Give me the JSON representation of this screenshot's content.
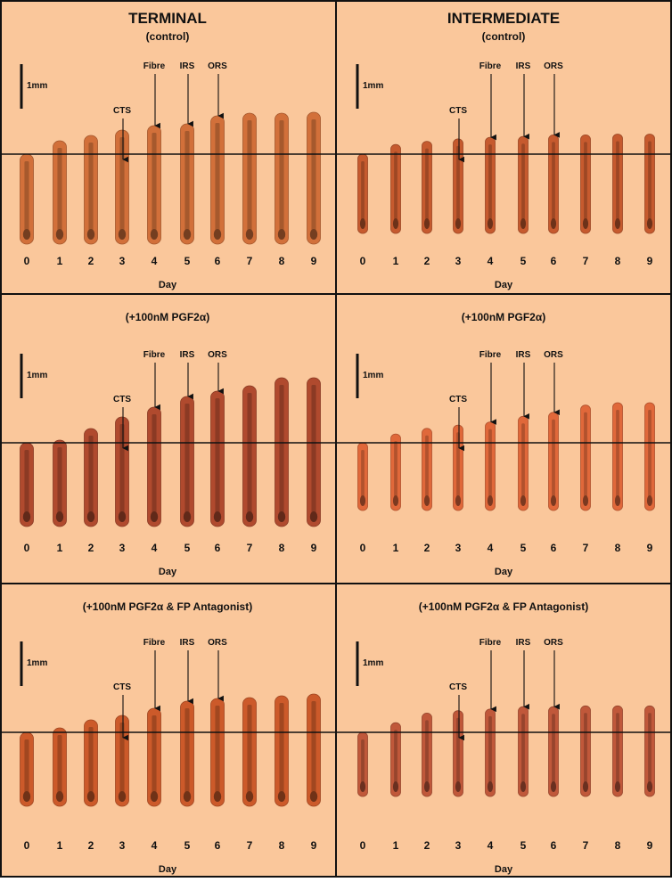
{
  "columns": [
    {
      "title": "TERMINAL"
    },
    {
      "title": "INTERMEDIATE"
    }
  ],
  "rows": [
    {
      "condition": "(control)"
    },
    {
      "condition": "(+100nM PGF2α)"
    },
    {
      "condition": "(+100nM PGF2α & FP Antagonist)"
    }
  ],
  "days": [
    "0",
    "1",
    "2",
    "3",
    "4",
    "5",
    "6",
    "7",
    "8",
    "9"
  ],
  "x_axis_label": "Day",
  "scale_bar_label": "1mm",
  "markers": [
    {
      "label": "CTS",
      "day": 3
    },
    {
      "label": "Fibre",
      "day": 4
    },
    {
      "label": "IRS",
      "day": 5
    },
    {
      "label": "ORS",
      "day": 6
    }
  ],
  "colors": {
    "background": "#FAC79B",
    "border": "#111111",
    "terminal_control_hair": "#D2703A",
    "intermediate_control_hair": "#C65A2E",
    "terminal_pgf_hair": "#B04A2E",
    "intermediate_pgf_hair": "#E0683A",
    "terminal_antagonist_hair": "#CC5A2A",
    "intermediate_antagonist_hair": "#C0583A"
  },
  "panels": [
    {
      "column": "TERMINAL",
      "row": "(control)",
      "color": "#D2703A",
      "growth": [
        0,
        0.15,
        0.21,
        0.27,
        0.32,
        0.34,
        0.43,
        0.46,
        0.46,
        0.47
      ]
    },
    {
      "column": "INTERMEDIATE",
      "row": "(control)",
      "color": "#C65A2E",
      "growth": [
        0,
        0.12,
        0.16,
        0.19,
        0.21,
        0.22,
        0.24,
        0.24,
        0.25,
        0.25
      ]
    },
    {
      "column": "TERMINAL",
      "row": "(+100nM PGF2α)",
      "color": "#B04A2E",
      "growth": [
        0,
        0.03,
        0.16,
        0.29,
        0.4,
        0.52,
        0.58,
        0.64,
        0.73,
        0.73
      ]
    },
    {
      "column": "INTERMEDIATE",
      "row": "(+100nM PGF2α)",
      "color": "#E0683A",
      "growth": [
        0,
        0.11,
        0.18,
        0.22,
        0.26,
        0.33,
        0.38,
        0.47,
        0.5,
        0.5
      ]
    },
    {
      "column": "TERMINAL",
      "row": "(+100nM PGF2α & FP Antagonist)",
      "color": "#CC5A2A",
      "growth": [
        0,
        0.05,
        0.14,
        0.19,
        0.27,
        0.35,
        0.38,
        0.39,
        0.41,
        0.43
      ]
    },
    {
      "column": "INTERMEDIATE",
      "row": "(+100nM PGF2α & FP Antagonist)",
      "color": "#C0583A",
      "growth": [
        0,
        0.12,
        0.24,
        0.27,
        0.29,
        0.32,
        0.32,
        0.33,
        0.33,
        0.33
      ]
    }
  ]
}
